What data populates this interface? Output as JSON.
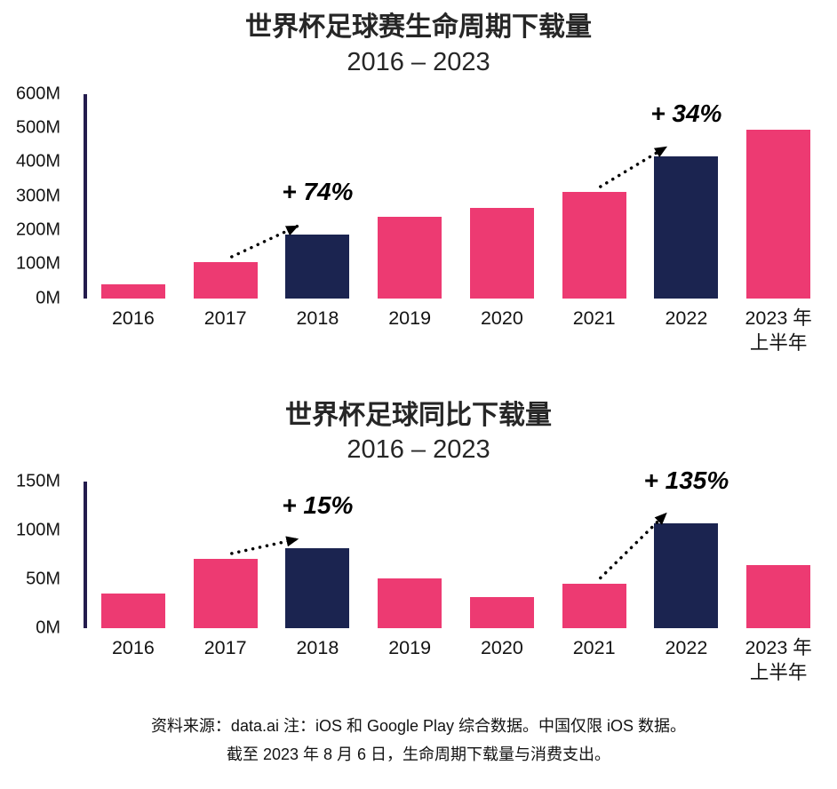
{
  "colors": {
    "pink": "#ED3A72",
    "navy": "#1B2450",
    "axis": "#241C4D",
    "arrow": "#000000",
    "text": "#1A1A1A"
  },
  "chart_data": [
    {
      "type": "bar",
      "title": "世界杯足球赛生命周期下载量",
      "subtitle": "2016 – 2023",
      "categories": [
        "2016",
        "2017",
        "2018",
        "2019",
        "2020",
        "2021",
        "2022",
        "2023 年\n上半年"
      ],
      "values": [
        40,
        107,
        186,
        239,
        266,
        313,
        418,
        495
      ],
      "unit": "M",
      "ylabel": "",
      "xlabel": "",
      "ylim": [
        0,
        600
      ],
      "yticks": [
        0,
        100,
        200,
        300,
        400,
        500,
        600
      ],
      "ytick_labels": [
        "0M",
        "100M",
        "200M",
        "300M",
        "400M",
        "500M",
        "600M"
      ],
      "grid": false,
      "legend": "none",
      "highlight_indices": [
        2,
        6
      ],
      "annotations": [
        {
          "label": "+ 74%",
          "from_index": 1,
          "to_index": 2
        },
        {
          "label": "+ 34%",
          "from_index": 5,
          "to_index": 6
        }
      ]
    },
    {
      "type": "bar",
      "title": "世界杯足球同比下载量",
      "subtitle": "2016 – 2023",
      "categories": [
        "2016",
        "2017",
        "2018",
        "2019",
        "2020",
        "2021",
        "2022",
        "2023 年\n上半年"
      ],
      "values": [
        36,
        71,
        82,
        51,
        32,
        46,
        108,
        65
      ],
      "unit": "M",
      "ylabel": "",
      "xlabel": "",
      "ylim": [
        0,
        150
      ],
      "yticks": [
        0,
        50,
        100,
        150
      ],
      "ytick_labels": [
        "0M",
        "50M",
        "100M",
        "150M"
      ],
      "grid": false,
      "legend": "none",
      "highlight_indices": [
        2,
        6
      ],
      "annotations": [
        {
          "label": "+ 15%",
          "from_index": 1,
          "to_index": 2
        },
        {
          "label": "+ 135%",
          "from_index": 5,
          "to_index": 6
        }
      ]
    }
  ],
  "footer": {
    "line1": "资料来源：data.ai 注：iOS 和 Google Play 综合数据。中国仅限 iOS 数据。",
    "line2": "截至 2023 年 8 月 6 日，生命周期下载量与消费支出。"
  }
}
